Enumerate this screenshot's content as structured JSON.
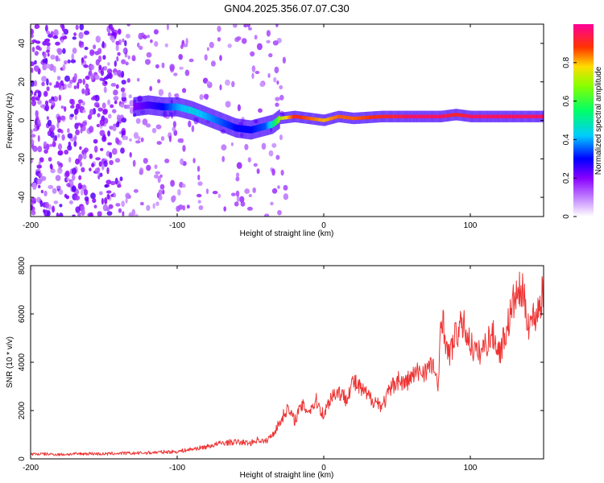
{
  "title": "GN04.2025.356.07.07.C30",
  "chart_data": [
    {
      "type": "heatmap",
      "name": "spectrogram",
      "xlabel": "Height of straight line (km)",
      "ylabel": "Frequency (Hz)",
      "xlim": [
        -200,
        150
      ],
      "ylim": [
        -50,
        50
      ],
      "xticks": [
        -200,
        -100,
        0,
        100
      ],
      "yticks": [
        -40,
        -20,
        0,
        20,
        40
      ],
      "colorbar": {
        "label": "Normalized spectral amplitude",
        "range": [
          0,
          1
        ],
        "ticks": [
          0.0,
          0.2,
          0.4,
          0.6,
          0.8
        ],
        "colors": [
          "#ffffff",
          "#8800ff",
          "#0000ff",
          "#00ffff",
          "#00ff00",
          "#ffff00",
          "#ff0000",
          "#ff00aa"
        ]
      },
      "signal_track": {
        "x": [
          -130,
          -120,
          -110,
          -100,
          -90,
          -80,
          -70,
          -60,
          -50,
          -40,
          -35,
          -30,
          -20,
          -10,
          0,
          10,
          20,
          40,
          60,
          80,
          90,
          100,
          120,
          150
        ],
        "freq": [
          7,
          8,
          7,
          7,
          5,
          2,
          -1,
          -4,
          -5,
          -3,
          -2,
          1,
          2,
          1,
          0,
          2,
          1,
          2,
          2,
          2,
          3,
          2,
          2,
          2
        ],
        "amplitude": [
          0.2,
          0.25,
          0.3,
          0.4,
          0.45,
          0.4,
          0.35,
          0.3,
          0.3,
          0.35,
          0.5,
          0.7,
          0.9,
          0.85,
          0.8,
          0.85,
          0.85,
          0.9,
          0.95,
          0.95,
          0.9,
          0.95,
          0.95,
          0.95
        ]
      }
    },
    {
      "type": "line",
      "name": "snr",
      "xlabel": "Height of straight line (km)",
      "ylabel": "SNR (10 * v/v)",
      "xlim": [
        -200,
        150
      ],
      "ylim": [
        0,
        8000
      ],
      "xticks": [
        -200,
        -100,
        0,
        100
      ],
      "yticks": [
        0,
        2000,
        4000,
        6000,
        8000
      ],
      "color": "#ee3333",
      "series": [
        {
          "name": "SNR",
          "x": [
            -200,
            -190,
            -180,
            -170,
            -160,
            -150,
            -140,
            -130,
            -120,
            -110,
            -100,
            -90,
            -80,
            -70,
            -60,
            -50,
            -45,
            -40,
            -35,
            -30,
            -25,
            -20,
            -15,
            -10,
            -5,
            0,
            5,
            10,
            15,
            20,
            25,
            30,
            35,
            40,
            45,
            50,
            55,
            60,
            65,
            70,
            75,
            78,
            80,
            85,
            90,
            95,
            100,
            105,
            110,
            115,
            120,
            125,
            130,
            135,
            140,
            145,
            150
          ],
          "y": [
            200,
            200,
            180,
            200,
            220,
            200,
            230,
            230,
            250,
            280,
            300,
            400,
            500,
            650,
            700,
            650,
            800,
            700,
            1000,
            1500,
            2100,
            1600,
            2200,
            2000,
            2400,
            1800,
            2600,
            2800,
            2500,
            3200,
            2900,
            2600,
            2400,
            2200,
            2800,
            3300,
            3100,
            3400,
            3600,
            3700,
            3900,
            2700,
            6200,
            4200,
            5100,
            5600,
            4800,
            4300,
            4700,
            5200,
            4400,
            5400,
            6600,
            7000,
            5600,
            6000,
            6900
          ]
        }
      ]
    }
  ]
}
